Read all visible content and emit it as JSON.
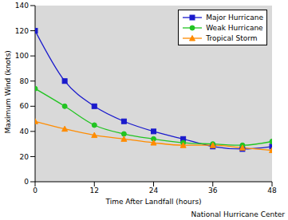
{
  "chart_data": {
    "type": "line",
    "x_label": "Time After Landfall (hours)",
    "y_label": "Maximum Wind (knots)",
    "annotations": [
      "National Hurricane Center"
    ],
    "x": [
      0,
      6,
      12,
      18,
      24,
      30,
      36,
      42,
      48
    ],
    "series": [
      {
        "name": "Major Hurricane",
        "color": "#1a1acc",
        "marker": "square",
        "values": [
          120,
          80,
          60,
          48,
          40,
          34,
          28,
          26,
          28
        ]
      },
      {
        "name": "Weak Hurricane",
        "color": "#22c422",
        "marker": "circle",
        "values": [
          74,
          60,
          45,
          38,
          34,
          31,
          30,
          29,
          32
        ]
      },
      {
        "name": "Tropical Storm",
        "color": "#ff8c00",
        "marker": "triangle",
        "values": [
          48,
          42,
          37,
          34,
          31,
          29,
          29,
          27,
          25
        ]
      }
    ],
    "xlim": [
      0,
      48
    ],
    "xticks": [
      0,
      12,
      24,
      36,
      48
    ],
    "ylim": [
      0,
      140
    ],
    "yticks": [
      0,
      20,
      40,
      60,
      80,
      100,
      120,
      140
    ],
    "grid": false,
    "legend": "top-right"
  }
}
